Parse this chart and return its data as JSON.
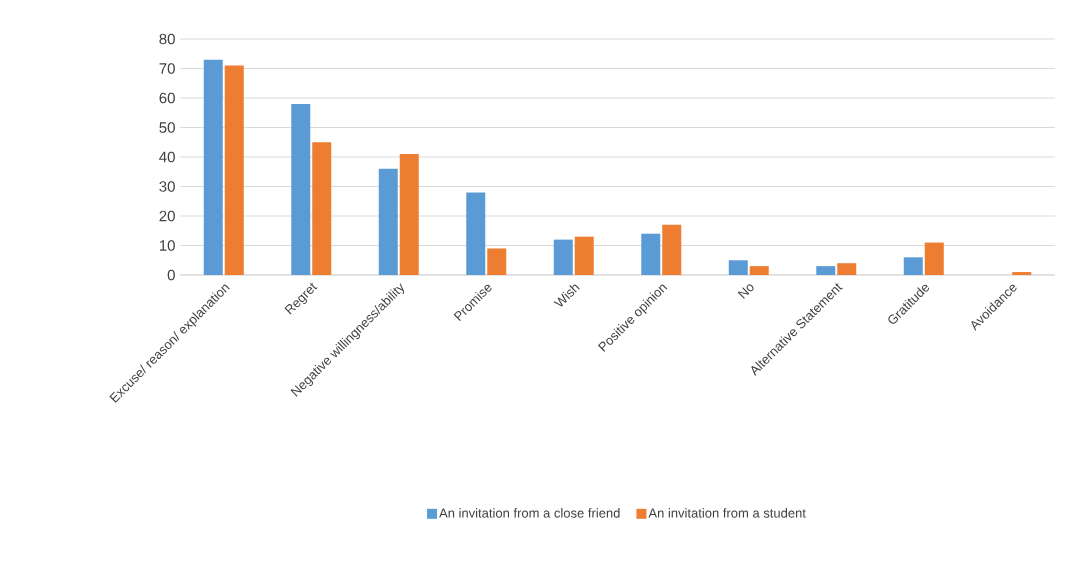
{
  "chart_data": {
    "type": "bar",
    "categories": [
      "Excuse/ reason/ explanation",
      "Regret",
      "Negative willingness/ability",
      "Promise",
      "Wish",
      "Positive opinion",
      "No",
      "Alternative Statement",
      "Gratitude",
      "Avoidance"
    ],
    "series": [
      {
        "name": "An invitation from a close friend",
        "color": "#5b9bd5",
        "values": [
          73,
          58,
          36,
          28,
          12,
          14,
          5,
          3,
          6,
          0
        ]
      },
      {
        "name": "An invitation from a student",
        "color": "#ed7d31",
        "values": [
          71,
          45,
          41,
          9,
          13,
          17,
          3,
          4,
          11,
          1
        ]
      }
    ],
    "ylim": [
      0,
      80
    ],
    "yticks": [
      0,
      10,
      20,
      30,
      40,
      50,
      60,
      70,
      80
    ],
    "grid": "y",
    "legend": "bottom"
  }
}
